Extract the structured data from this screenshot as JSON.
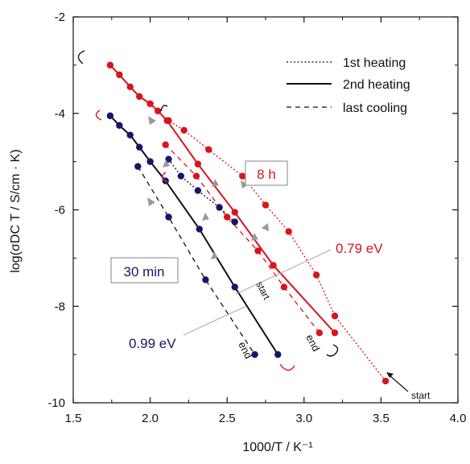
{
  "chart_data": {
    "type": "scatter",
    "xlabel": "1000/T / K⁻¹",
    "ylabel": "log(σDC T / S/cm · K)",
    "xlim": [
      1.5,
      4.0
    ],
    "ylim": [
      -10,
      -2
    ],
    "xticks": [
      "1.5",
      "2.0",
      "2.5",
      "3.0",
      "3.5",
      "4.0"
    ],
    "yticks": [
      "-2",
      "-4",
      "-6",
      "-8",
      "-10"
    ],
    "grid": false,
    "legend": {
      "position": "top-right",
      "entries": [
        {
          "label": "1st heating",
          "style": "dotted"
        },
        {
          "label": "2nd heating",
          "style": "solid"
        },
        {
          "label": "last cooling",
          "style": "dashed"
        }
      ]
    },
    "samples": [
      {
        "name": "8 h",
        "color": "#d8141c",
        "activation_energy": "0.79 eV",
        "series": [
          {
            "name": "1st heating",
            "style": "dotted",
            "x": [
              3.53,
              3.2,
              3.08,
              2.9,
              2.75,
              2.6,
              2.38,
              2.22,
              2.12
            ],
            "y": [
              -9.55,
              -8.2,
              -7.35,
              -6.45,
              -5.9,
              -5.3,
              -4.75,
              -4.35,
              -4.15
            ]
          },
          {
            "name": "2nd heating",
            "style": "solid",
            "x": [
              1.74,
              1.8,
              1.87,
              1.93,
              2.0,
              2.05,
              2.11,
              2.31,
              2.55,
              2.8,
              3.2
            ],
            "y": [
              -3.0,
              -3.2,
              -3.45,
              -3.65,
              -3.8,
              -3.95,
              -4.15,
              -5.05,
              -6.05,
              -7.15,
              -8.55
            ]
          },
          {
            "name": "last cooling",
            "style": "dashed",
            "x": [
              3.1,
              2.87,
              2.7,
              2.5,
              2.3,
              2.1
            ],
            "y": [
              -8.55,
              -7.6,
              -6.85,
              -6.15,
              -5.3,
              -4.65
            ]
          }
        ]
      },
      {
        "name": "30 min",
        "color": "#15166a",
        "activation_energy": "0.99 eV",
        "series": [
          {
            "name": "1st heating",
            "style": "dotted",
            "x": [
              2.12,
              2.2,
              2.31,
              2.45,
              2.55
            ],
            "y": [
              -4.95,
              -5.3,
              -5.6,
              -5.95,
              -6.25
            ]
          },
          {
            "name": "2nd heating",
            "style": "solid",
            "x": [
              1.74,
              1.8,
              1.87,
              1.93,
              2.0,
              2.1,
              2.32,
              2.55,
              2.83
            ],
            "y": [
              -4.05,
              -4.25,
              -4.45,
              -4.7,
              -5.0,
              -5.4,
              -6.4,
              -7.6,
              -9.0
            ]
          },
          {
            "name": "last cooling",
            "style": "dashed",
            "x": [
              1.92,
              2.12,
              2.36,
              2.68
            ],
            "y": [
              -5.1,
              -6.15,
              -7.45,
              -9.0
            ]
          }
        ]
      }
    ],
    "annotations": {
      "label_8h": "8 h",
      "label_30min": "30 min",
      "ea_8h": "0.79 eV",
      "ea_30min": "0.99 eV",
      "start_bottom": "start",
      "start_mid": "start",
      "end_red": "end",
      "end_blue": "end"
    }
  }
}
